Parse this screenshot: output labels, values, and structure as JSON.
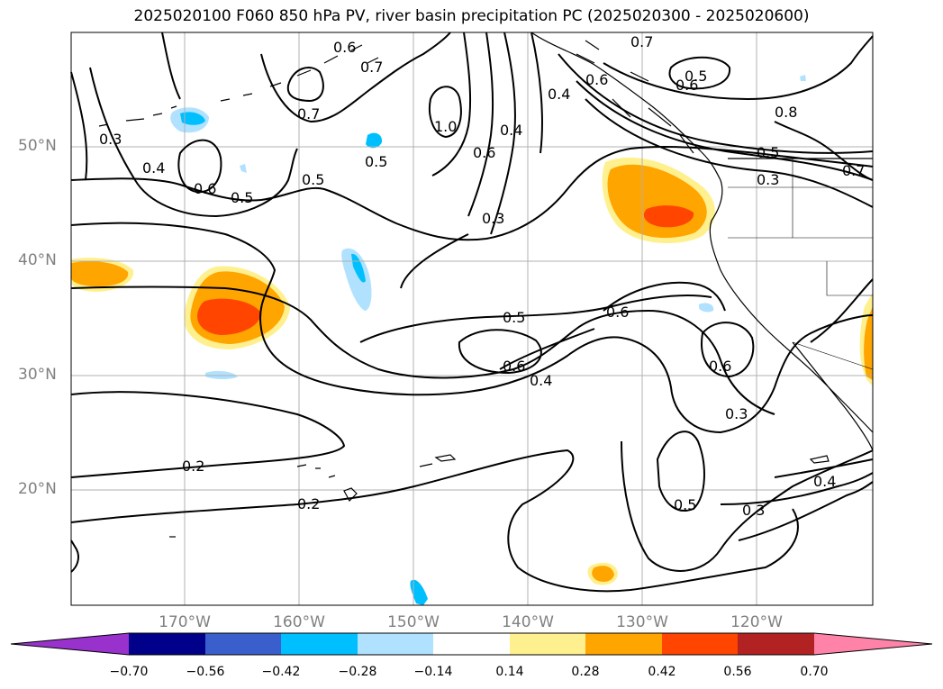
{
  "title": "2025020100 F060 850 hPa PV, river basin precipitation PC (2025020300 - 2025020600)",
  "lat_labels": [
    "50°N",
    "40°N",
    "30°N",
    "20°N"
  ],
  "lon_labels": [
    "170°W",
    "160°W",
    "150°W",
    "140°W",
    "130°W",
    "120°W"
  ],
  "contour_labels": [
    "0.6",
    "0.7",
    "0.7",
    "0.5",
    "0.6",
    "0.4",
    "0.6",
    "0.7",
    "1.0",
    "0.4",
    "0.8",
    "0.5",
    "0.7",
    "0.3",
    "0.3",
    "0.4",
    "0.6",
    "0.5",
    "0.5",
    "0.5",
    "0.6",
    "0.3",
    "0.5",
    "0.6",
    "0.6",
    "0.4",
    "0.6",
    "0.3",
    "0.2",
    "0.2",
    "0.5",
    "0.3",
    "0.4"
  ],
  "colorbar": {
    "ticks": [
      "−0.70",
      "−0.56",
      "−0.42",
      "−0.28",
      "−0.14",
      "0.14",
      "0.28",
      "0.42",
      "0.56",
      "0.70"
    ],
    "colors": [
      "#9932cc",
      "#00008b",
      "#3a5fcd",
      "#00bfff",
      "#b0e2ff",
      "#ffffff",
      "#fff08f",
      "#ffa500",
      "#ff4500",
      "#b22222",
      "#ff83a8"
    ]
  }
}
